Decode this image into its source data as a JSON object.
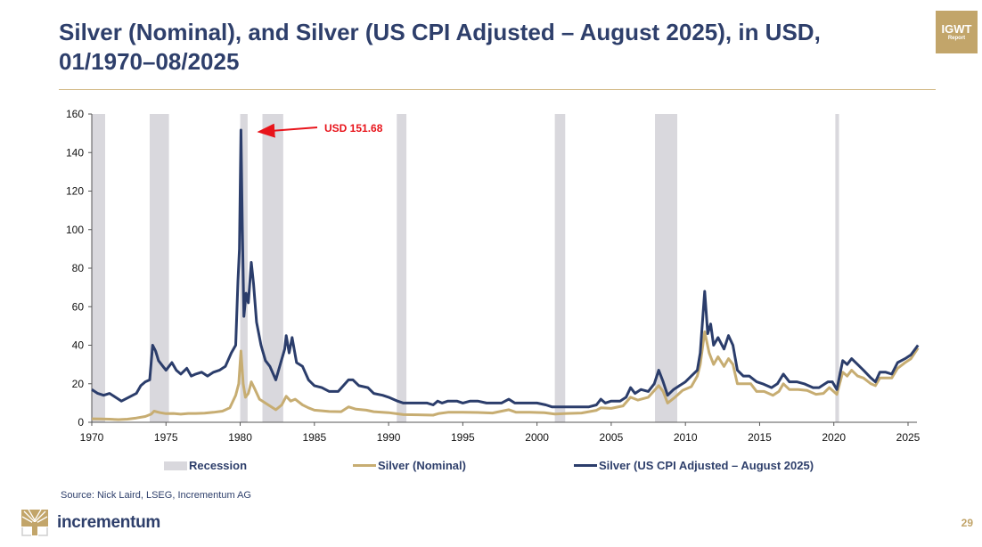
{
  "header": {
    "title": "Silver (Nominal), and Silver (US CPI Adjusted – August 2025), in USD, 01/1970–08/2025",
    "badge_line1": "IGWT",
    "badge_line2": "Report"
  },
  "footer": {
    "source": "Source: Nick Laird, LSEG, Incrementum AG",
    "logo_text": "incrementum",
    "page_number": "29"
  },
  "colors": {
    "title": "#2e3f6b",
    "nominal": "#c7ad72",
    "cpi_adjusted": "#2b3d6b",
    "recession": "#d9d8dd",
    "annotation": "#e8141b",
    "accent": "#c2a56a"
  },
  "chart_data": {
    "type": "line",
    "title": "Silver (Nominal), and Silver (US CPI Adjusted – August 2025), in USD, 01/1970–08/2025",
    "xlabel": "",
    "ylabel": "",
    "xlim": [
      1970,
      2025.67
    ],
    "ylim": [
      0,
      160
    ],
    "x_ticks": [
      1970,
      1975,
      1980,
      1985,
      1990,
      1995,
      2000,
      2005,
      2010,
      2015,
      2020,
      2025
    ],
    "y_ticks": [
      0,
      20,
      40,
      60,
      80,
      100,
      120,
      140,
      160
    ],
    "grid": false,
    "legend_position": "bottom",
    "legend": [
      "Recession",
      "Silver (Nominal)",
      "Silver (US CPI Adjusted – August 2025)"
    ],
    "annotation": {
      "text": "USD 151.68",
      "x": 1980.05,
      "y": 151.68
    },
    "recessions": [
      [
        1970.0,
        1970.9
      ],
      [
        1973.9,
        1975.2
      ],
      [
        1980.0,
        1980.5
      ],
      [
        1981.5,
        1982.9
      ],
      [
        1990.55,
        1991.2
      ],
      [
        2001.2,
        2001.9
      ],
      [
        2007.95,
        2009.45
      ],
      [
        2020.1,
        2020.35
      ]
    ],
    "series": [
      {
        "name": "Silver (US CPI Adjusted – August 2025)",
        "points": [
          [
            1970.0,
            17
          ],
          [
            1970.4,
            15
          ],
          [
            1970.8,
            14
          ],
          [
            1971.2,
            15
          ],
          [
            1971.6,
            13
          ],
          [
            1972.0,
            11
          ],
          [
            1972.5,
            13
          ],
          [
            1973.0,
            15
          ],
          [
            1973.3,
            19
          ],
          [
            1973.6,
            21
          ],
          [
            1973.9,
            22
          ],
          [
            1974.1,
            40
          ],
          [
            1974.3,
            37
          ],
          [
            1974.5,
            32
          ],
          [
            1974.8,
            29
          ],
          [
            1975.0,
            27
          ],
          [
            1975.4,
            31
          ],
          [
            1975.7,
            27
          ],
          [
            1976.0,
            25
          ],
          [
            1976.4,
            28
          ],
          [
            1976.7,
            24
          ],
          [
            1977.0,
            25
          ],
          [
            1977.4,
            26
          ],
          [
            1977.8,
            24
          ],
          [
            1978.2,
            26
          ],
          [
            1978.6,
            27
          ],
          [
            1979.0,
            29
          ],
          [
            1979.4,
            36
          ],
          [
            1979.7,
            40
          ],
          [
            1979.85,
            73
          ],
          [
            1979.95,
            90
          ],
          [
            1980.05,
            151.68
          ],
          [
            1980.15,
            100
          ],
          [
            1980.25,
            55
          ],
          [
            1980.4,
            67
          ],
          [
            1980.55,
            62
          ],
          [
            1980.75,
            83
          ],
          [
            1980.9,
            72
          ],
          [
            1981.1,
            52
          ],
          [
            1981.4,
            40
          ],
          [
            1981.7,
            32
          ],
          [
            1982.0,
            29
          ],
          [
            1982.4,
            22
          ],
          [
            1982.7,
            30
          ],
          [
            1983.0,
            38
          ],
          [
            1983.1,
            45
          ],
          [
            1983.3,
            36
          ],
          [
            1983.5,
            44
          ],
          [
            1983.8,
            31
          ],
          [
            1984.2,
            29
          ],
          [
            1984.6,
            22
          ],
          [
            1985.0,
            19
          ],
          [
            1985.5,
            18
          ],
          [
            1986.0,
            16
          ],
          [
            1986.6,
            16
          ],
          [
            1987.3,
            22
          ],
          [
            1987.6,
            22
          ],
          [
            1988.0,
            19
          ],
          [
            1988.6,
            18
          ],
          [
            1989.0,
            15
          ],
          [
            1989.6,
            14
          ],
          [
            1990.0,
            13
          ],
          [
            1990.6,
            11
          ],
          [
            1991.0,
            10
          ],
          [
            1991.5,
            10
          ],
          [
            1992.0,
            10
          ],
          [
            1992.6,
            10
          ],
          [
            1993.0,
            9
          ],
          [
            1993.3,
            11
          ],
          [
            1993.6,
            10
          ],
          [
            1994.0,
            11
          ],
          [
            1994.6,
            11
          ],
          [
            1995.0,
            10
          ],
          [
            1995.5,
            11
          ],
          [
            1996.0,
            11
          ],
          [
            1996.6,
            10
          ],
          [
            1997.0,
            10
          ],
          [
            1997.6,
            10
          ],
          [
            1998.1,
            12
          ],
          [
            1998.5,
            10
          ],
          [
            1999.0,
            10
          ],
          [
            1999.6,
            10
          ],
          [
            2000.0,
            10
          ],
          [
            2000.6,
            9
          ],
          [
            2001.0,
            8
          ],
          [
            2001.6,
            8
          ],
          [
            2002.0,
            8
          ],
          [
            2002.6,
            8
          ],
          [
            2003.0,
            8
          ],
          [
            2003.5,
            8
          ],
          [
            2004.0,
            9
          ],
          [
            2004.3,
            12
          ],
          [
            2004.6,
            10
          ],
          [
            2005.0,
            11
          ],
          [
            2005.6,
            11
          ],
          [
            2006.0,
            13
          ],
          [
            2006.3,
            18
          ],
          [
            2006.6,
            15
          ],
          [
            2007.0,
            17
          ],
          [
            2007.5,
            16
          ],
          [
            2007.9,
            20
          ],
          [
            2008.2,
            27
          ],
          [
            2008.5,
            21
          ],
          [
            2008.8,
            14
          ],
          [
            2009.2,
            17
          ],
          [
            2009.6,
            19
          ],
          [
            2010.0,
            21
          ],
          [
            2010.4,
            24
          ],
          [
            2010.8,
            27
          ],
          [
            2011.0,
            36
          ],
          [
            2011.3,
            68
          ],
          [
            2011.5,
            46
          ],
          [
            2011.7,
            51
          ],
          [
            2011.9,
            40
          ],
          [
            2012.2,
            44
          ],
          [
            2012.6,
            38
          ],
          [
            2012.9,
            45
          ],
          [
            2013.2,
            40
          ],
          [
            2013.5,
            27
          ],
          [
            2013.9,
            24
          ],
          [
            2014.3,
            24
          ],
          [
            2014.8,
            21
          ],
          [
            2015.2,
            20
          ],
          [
            2015.8,
            18
          ],
          [
            2016.2,
            20
          ],
          [
            2016.6,
            25
          ],
          [
            2017.0,
            21
          ],
          [
            2017.5,
            21
          ],
          [
            2018.0,
            20
          ],
          [
            2018.6,
            18
          ],
          [
            2019.0,
            18
          ],
          [
            2019.6,
            21
          ],
          [
            2019.9,
            21
          ],
          [
            2020.2,
            17
          ],
          [
            2020.6,
            32
          ],
          [
            2020.9,
            30
          ],
          [
            2021.2,
            33
          ],
          [
            2021.6,
            30
          ],
          [
            2022.0,
            27
          ],
          [
            2022.5,
            23
          ],
          [
            2022.8,
            21
          ],
          [
            2023.1,
            26
          ],
          [
            2023.5,
            26
          ],
          [
            2023.9,
            25
          ],
          [
            2024.3,
            31
          ],
          [
            2024.8,
            33
          ],
          [
            2025.2,
            35
          ],
          [
            2025.67,
            40
          ]
        ]
      },
      {
        "name": "Silver (Nominal)",
        "points": [
          [
            1970.0,
            1.8
          ],
          [
            1970.6,
            1.7
          ],
          [
            1971.2,
            1.6
          ],
          [
            1971.8,
            1.4
          ],
          [
            1972.4,
            1.6
          ],
          [
            1973.0,
            2.2
          ],
          [
            1973.6,
            3.0
          ],
          [
            1974.0,
            4.2
          ],
          [
            1974.2,
            5.8
          ],
          [
            1974.6,
            5.0
          ],
          [
            1975.0,
            4.5
          ],
          [
            1975.5,
            4.6
          ],
          [
            1976.0,
            4.2
          ],
          [
            1976.5,
            4.6
          ],
          [
            1977.0,
            4.6
          ],
          [
            1977.6,
            4.7
          ],
          [
            1978.2,
            5.2
          ],
          [
            1978.8,
            5.8
          ],
          [
            1979.3,
            7.5
          ],
          [
            1979.7,
            14
          ],
          [
            1979.9,
            20
          ],
          [
            1980.05,
            37
          ],
          [
            1980.2,
            20
          ],
          [
            1980.35,
            13
          ],
          [
            1980.55,
            15
          ],
          [
            1980.75,
            21
          ],
          [
            1981.0,
            17
          ],
          [
            1981.3,
            12
          ],
          [
            1981.8,
            9.5
          ],
          [
            1982.4,
            6.5
          ],
          [
            1982.8,
            9
          ],
          [
            1983.1,
            13.5
          ],
          [
            1983.4,
            11
          ],
          [
            1983.7,
            12
          ],
          [
            1984.2,
            9
          ],
          [
            1984.6,
            7.5
          ],
          [
            1985.0,
            6.3
          ],
          [
            1986.0,
            5.6
          ],
          [
            1986.8,
            5.5
          ],
          [
            1987.3,
            8
          ],
          [
            1987.8,
            6.8
          ],
          [
            1988.5,
            6.3
          ],
          [
            1989.0,
            5.5
          ],
          [
            1990.0,
            5.0
          ],
          [
            1991.0,
            4.0
          ],
          [
            1992.0,
            3.9
          ],
          [
            1993.0,
            3.7
          ],
          [
            1993.4,
            4.6
          ],
          [
            1994.0,
            5.2
          ],
          [
            1995.0,
            5.2
          ],
          [
            1996.0,
            5.1
          ],
          [
            1997.0,
            4.8
          ],
          [
            1998.1,
            6.5
          ],
          [
            1998.6,
            5.2
          ],
          [
            1999.5,
            5.2
          ],
          [
            2000.5,
            5.0
          ],
          [
            2001.2,
            4.3
          ],
          [
            2002.0,
            4.6
          ],
          [
            2003.0,
            4.8
          ],
          [
            2004.0,
            6.2
          ],
          [
            2004.3,
            7.5
          ],
          [
            2005.0,
            7.2
          ],
          [
            2005.8,
            8.5
          ],
          [
            2006.3,
            13
          ],
          [
            2006.8,
            11.5
          ],
          [
            2007.5,
            13
          ],
          [
            2008.2,
            19
          ],
          [
            2008.5,
            16
          ],
          [
            2008.8,
            10
          ],
          [
            2009.3,
            13
          ],
          [
            2009.8,
            16.5
          ],
          [
            2010.4,
            18.5
          ],
          [
            2010.8,
            24
          ],
          [
            2011.0,
            30
          ],
          [
            2011.3,
            47
          ],
          [
            2011.6,
            36
          ],
          [
            2011.9,
            30
          ],
          [
            2012.2,
            34
          ],
          [
            2012.6,
            29
          ],
          [
            2012.9,
            33
          ],
          [
            2013.2,
            30
          ],
          [
            2013.5,
            20
          ],
          [
            2013.9,
            20
          ],
          [
            2014.4,
            20
          ],
          [
            2014.8,
            16
          ],
          [
            2015.3,
            16
          ],
          [
            2015.9,
            14
          ],
          [
            2016.3,
            16
          ],
          [
            2016.6,
            20
          ],
          [
            2017.0,
            17
          ],
          [
            2017.6,
            17
          ],
          [
            2018.2,
            16.5
          ],
          [
            2018.8,
            14.5
          ],
          [
            2019.3,
            15
          ],
          [
            2019.7,
            18
          ],
          [
            2020.2,
            14.5
          ],
          [
            2020.6,
            26
          ],
          [
            2020.9,
            24
          ],
          [
            2021.2,
            27
          ],
          [
            2021.6,
            24
          ],
          [
            2022.0,
            23
          ],
          [
            2022.5,
            20
          ],
          [
            2022.8,
            19
          ],
          [
            2023.1,
            23
          ],
          [
            2023.5,
            23
          ],
          [
            2023.9,
            23
          ],
          [
            2024.3,
            28
          ],
          [
            2024.8,
            31
          ],
          [
            2025.2,
            33
          ],
          [
            2025.67,
            38.5
          ]
        ]
      }
    ]
  }
}
